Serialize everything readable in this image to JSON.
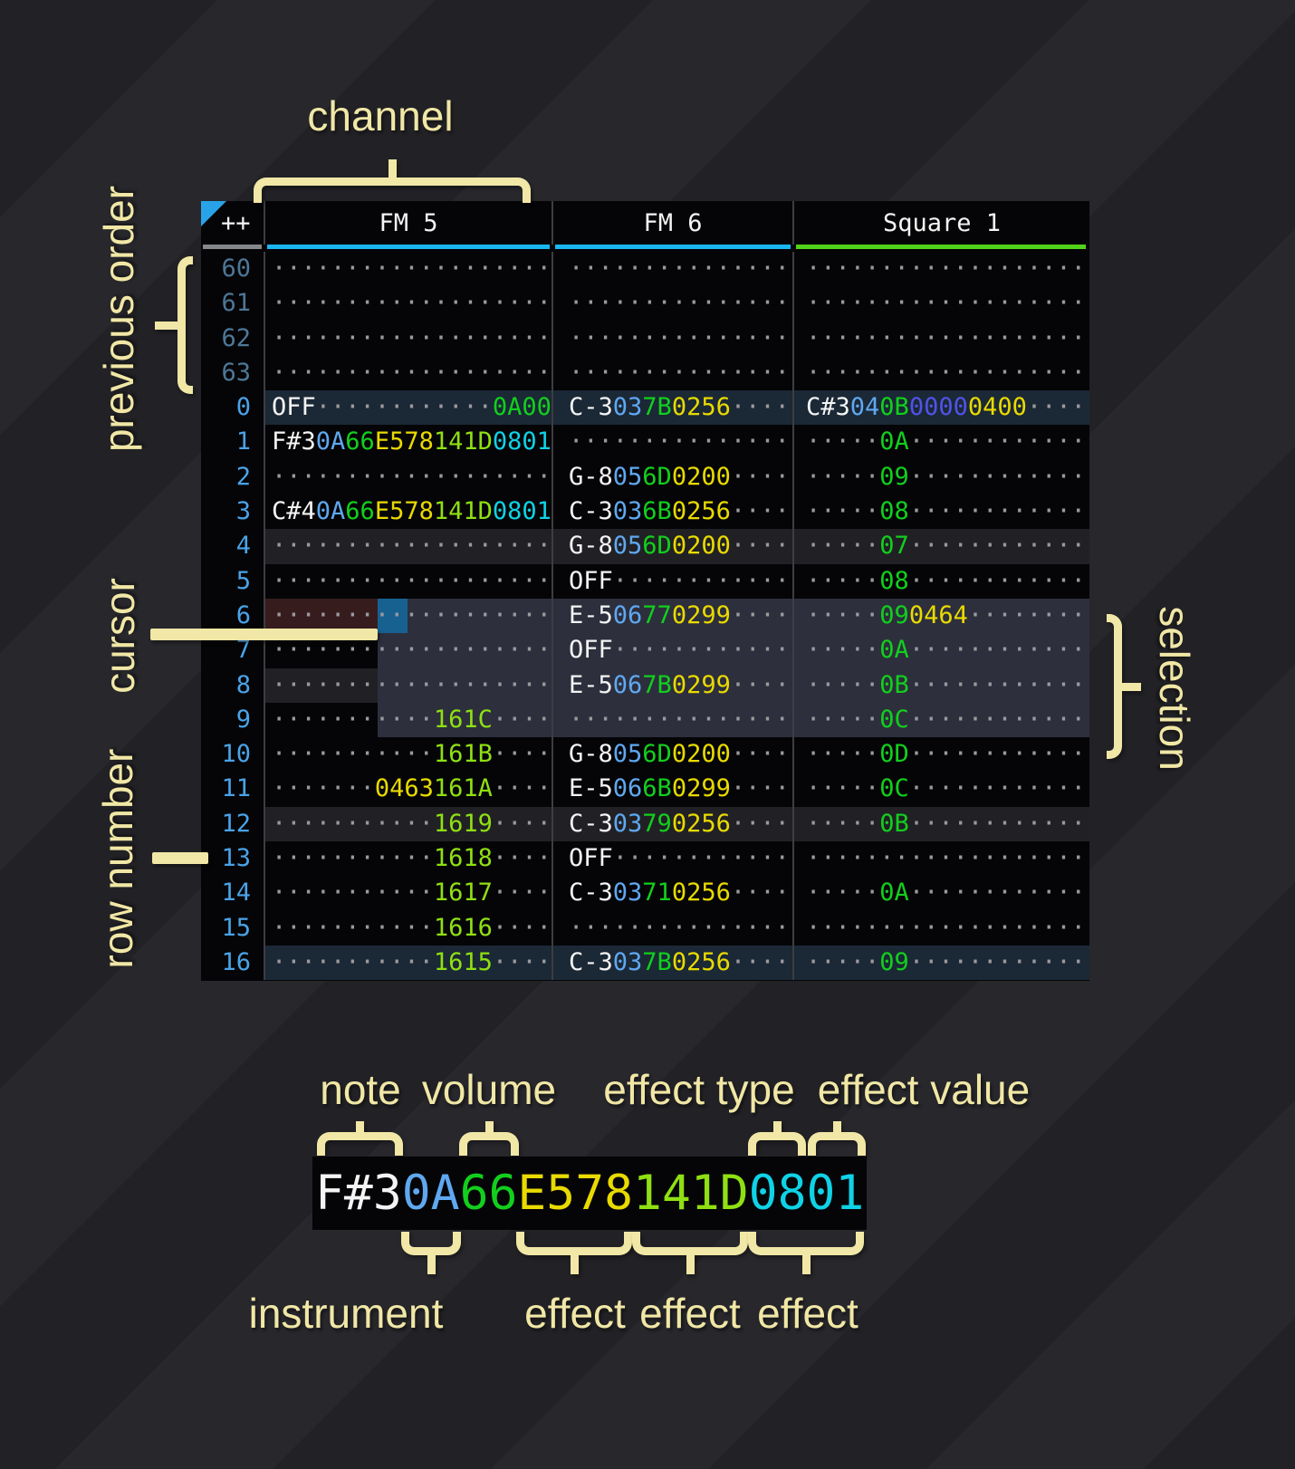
{
  "palette": {
    "tablebg": "#050507",
    "colline": "#3d3d42",
    "triangle": "#29a3e8",
    "note": "#f4f4f4",
    "ins": "#5fa8f0",
    "vol": "#12cf1d",
    "fxyellow": "#e9da00",
    "fxlime": "#8fe012",
    "fxcyan": "#0fd2e6",
    "fxindigo": "#5252e8",
    "dots": "#9a9a9e",
    "rowblue": "#4aa3e8",
    "rowprev": "#4d7797",
    "hlfour": "#212125",
    "hlorder": "#1b2836",
    "selbg": "#2d2f3d",
    "curline": "#371c1e",
    "curblock": "#176191",
    "cyanline": "#19b7f2",
    "greenline": "#52d319",
    "greyline": "#85878a",
    "cream": "#f1e7a6"
  },
  "tracker": {
    "corner_label": "++",
    "channels": [
      {
        "name": "FM 5",
        "underline": "#19b7f2",
        "fx_slots": 3
      },
      {
        "name": "FM 6",
        "underline": "#19b7f2",
        "fx_slots": 2
      },
      {
        "name": "Square 1",
        "underline": "#52d319",
        "fx_slots": 3
      }
    ],
    "rows": [
      {
        "num": "60",
        "kind": "previous",
        "cells": [
          null,
          null,
          null
        ]
      },
      {
        "num": "61",
        "kind": "previous",
        "cells": [
          null,
          null,
          null
        ]
      },
      {
        "num": "62",
        "kind": "previous",
        "cells": [
          null,
          null,
          null
        ]
      },
      {
        "num": "63",
        "kind": "previous",
        "cells": [
          null,
          null,
          null
        ]
      },
      {
        "num": "0",
        "kind": "order",
        "cells": [
          {
            "n": "OFF",
            "fx": [
              null,
              null,
              [
                "0A00",
                "green"
              ]
            ]
          },
          {
            "n": "C-3",
            "i": "03",
            "v": "7B",
            "fx": [
              [
                "0256",
                "yellow"
              ],
              null
            ]
          },
          {
            "n": "C#3",
            "i": "04",
            "v": "0B",
            "fx": [
              [
                "0000",
                "indigo"
              ],
              [
                "0400",
                "yellow"
              ],
              null
            ]
          }
        ]
      },
      {
        "num": "1",
        "kind": "",
        "cells": [
          {
            "n": "F#3",
            "i": "0A",
            "v": "66",
            "fx": [
              [
                "E578",
                "yellow"
              ],
              [
                "141D",
                "lime"
              ],
              [
                "0801",
                "cyan"
              ]
            ]
          },
          null,
          {
            "v": "0A"
          }
        ]
      },
      {
        "num": "2",
        "kind": "",
        "cells": [
          null,
          {
            "n": "G-8",
            "i": "05",
            "v": "6D",
            "fx": [
              [
                "0200",
                "yellow"
              ],
              null
            ]
          },
          {
            "v": "09"
          }
        ]
      },
      {
        "num": "3",
        "kind": "",
        "cells": [
          {
            "n": "C#4",
            "i": "0A",
            "v": "66",
            "fx": [
              [
                "E578",
                "yellow"
              ],
              [
                "141D",
                "lime"
              ],
              [
                "0801",
                "cyan"
              ]
            ]
          },
          {
            "n": "C-3",
            "i": "03",
            "v": "6B",
            "fx": [
              [
                "0256",
                "yellow"
              ],
              null
            ]
          },
          {
            "v": "08"
          }
        ]
      },
      {
        "num": "4",
        "kind": "four",
        "cells": [
          null,
          {
            "n": "G-8",
            "i": "05",
            "v": "6D",
            "fx": [
              [
                "0200",
                "yellow"
              ],
              null
            ]
          },
          {
            "v": "07"
          }
        ]
      },
      {
        "num": "5",
        "kind": "",
        "cells": [
          null,
          {
            "n": "OFF"
          },
          {
            "v": "08"
          }
        ]
      },
      {
        "num": "6",
        "kind": "cursor",
        "selected": true,
        "cells": [
          null,
          {
            "n": "E-5",
            "i": "06",
            "v": "77",
            "fx": [
              [
                "0299",
                "yellow"
              ],
              null
            ]
          },
          {
            "v": "09",
            "fx": [
              [
                "0464",
                "yellow"
              ],
              null,
              null
            ]
          }
        ]
      },
      {
        "num": "7",
        "kind": "",
        "selected": true,
        "cells": [
          null,
          {
            "n": "OFF"
          },
          {
            "v": "0A"
          }
        ]
      },
      {
        "num": "8",
        "kind": "four",
        "selected": true,
        "cells": [
          null,
          {
            "n": "E-5",
            "i": "06",
            "v": "7B",
            "fx": [
              [
                "0299",
                "yellow"
              ],
              null
            ]
          },
          {
            "v": "0B"
          }
        ]
      },
      {
        "num": "9",
        "kind": "",
        "selected": true,
        "cells": [
          {
            "fx": [
              null,
              [
                "161C",
                "lime"
              ],
              null
            ]
          },
          null,
          {
            "v": "0C"
          }
        ]
      },
      {
        "num": "10",
        "kind": "",
        "cells": [
          {
            "fx": [
              null,
              [
                "161B",
                "lime"
              ],
              null
            ]
          },
          {
            "n": "G-8",
            "i": "05",
            "v": "6D",
            "fx": [
              [
                "0200",
                "yellow"
              ],
              null
            ]
          },
          {
            "v": "0D"
          }
        ]
      },
      {
        "num": "11",
        "kind": "",
        "cells": [
          {
            "fx": [
              [
                "0463",
                "yellow"
              ],
              [
                "161A",
                "lime"
              ],
              null
            ]
          },
          {
            "n": "E-5",
            "i": "06",
            "v": "6B",
            "fx": [
              [
                "0299",
                "yellow"
              ],
              null
            ]
          },
          {
            "v": "0C"
          }
        ]
      },
      {
        "num": "12",
        "kind": "four",
        "cells": [
          {
            "fx": [
              null,
              [
                "1619",
                "lime"
              ],
              null
            ]
          },
          {
            "n": "C-3",
            "i": "03",
            "v": "79",
            "fx": [
              [
                "0256",
                "yellow"
              ],
              null
            ]
          },
          {
            "v": "0B"
          }
        ]
      },
      {
        "num": "13",
        "kind": "",
        "cells": [
          {
            "fx": [
              null,
              [
                "1618",
                "lime"
              ],
              null
            ]
          },
          {
            "n": "OFF"
          },
          null
        ]
      },
      {
        "num": "14",
        "kind": "",
        "cells": [
          {
            "fx": [
              null,
              [
                "1617",
                "lime"
              ],
              null
            ]
          },
          {
            "n": "C-3",
            "i": "03",
            "v": "71",
            "fx": [
              [
                "0256",
                "yellow"
              ],
              null
            ]
          },
          {
            "v": "0A"
          }
        ]
      },
      {
        "num": "15",
        "kind": "",
        "cells": [
          {
            "fx": [
              null,
              [
                "1616",
                "lime"
              ],
              null
            ]
          },
          null,
          null
        ]
      },
      {
        "num": "16",
        "kind": "order",
        "cells": [
          {
            "fx": [
              null,
              [
                "1615",
                "lime"
              ],
              null
            ]
          },
          {
            "n": "C-3",
            "i": "03",
            "v": "7B",
            "fx": [
              [
                "0256",
                "yellow"
              ],
              null
            ]
          },
          {
            "v": "09"
          }
        ]
      }
    ]
  },
  "annotations": {
    "channel": "channel",
    "previous_order": "previous order",
    "cursor": "cursor",
    "row_number": "row number",
    "selection": "selection"
  },
  "legend": {
    "cell": {
      "note": "F#3",
      "instrument": "0A",
      "volume": "66",
      "effects": [
        [
          "E578",
          "yellow"
        ],
        [
          "141D",
          "lime"
        ],
        [
          "0801",
          "cyan"
        ]
      ]
    },
    "labels": {
      "note": "note",
      "volume": "volume",
      "effect_type": "effect type",
      "effect_value": "effect value",
      "instrument": "instrument",
      "effect": "effect"
    }
  }
}
